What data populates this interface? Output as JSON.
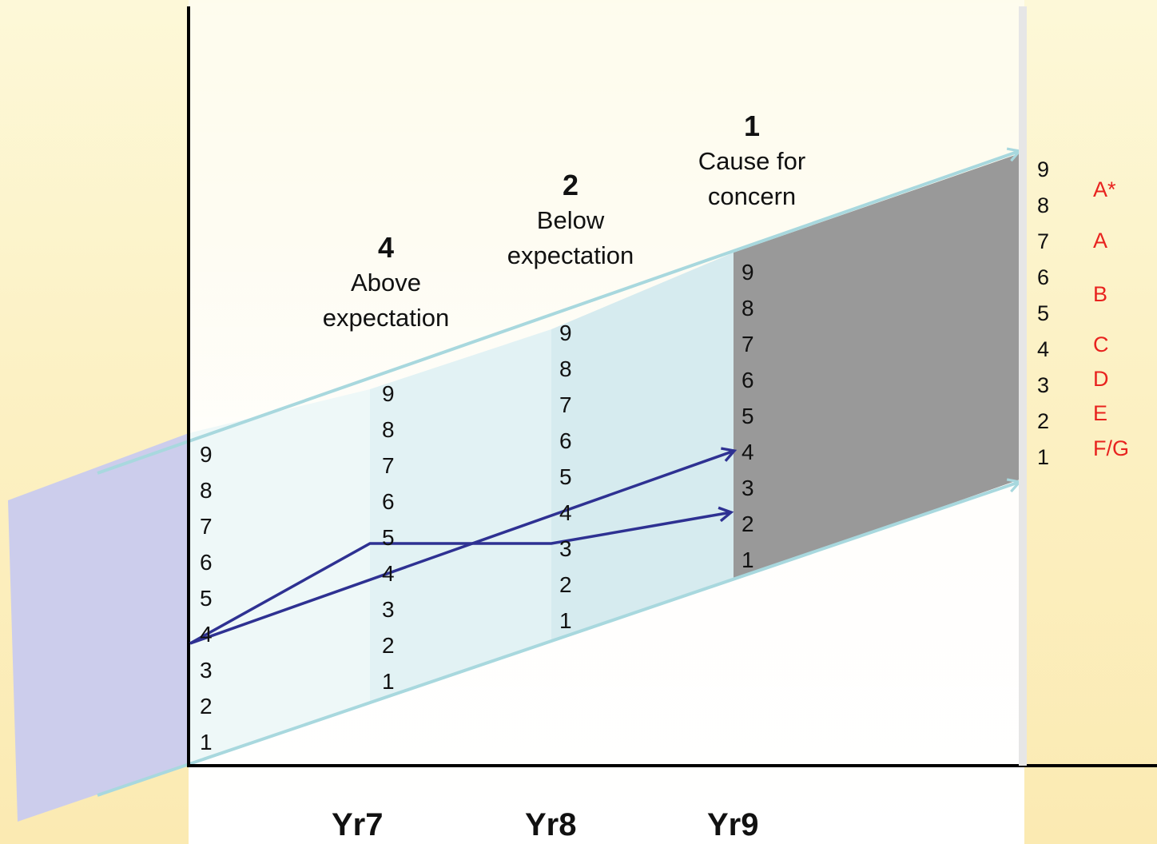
{
  "scale_values": [
    "9",
    "8",
    "7",
    "6",
    "5",
    "4",
    "3",
    "2",
    "1"
  ],
  "columns": {
    "start": {
      "values": [
        "9",
        "8",
        "7",
        "6",
        "5",
        "4",
        "3",
        "2",
        "1"
      ]
    },
    "yr7": {
      "values": [
        "9",
        "8",
        "7",
        "6",
        "5",
        "4",
        "3",
        "2",
        "1"
      ]
    },
    "yr8": {
      "values": [
        "9",
        "8",
        "7",
        "6",
        "5",
        "4",
        "3",
        "2",
        "1"
      ]
    },
    "yr9": {
      "values": [
        "9",
        "8",
        "7",
        "6",
        "5",
        "4",
        "3",
        "2",
        "1"
      ]
    },
    "gcse": {
      "values": [
        "9",
        "8",
        "7",
        "6",
        "5",
        "4",
        "3",
        "2",
        "1"
      ]
    }
  },
  "grades": [
    {
      "label": "A*"
    },
    {
      "label": "A"
    },
    {
      "label": "B"
    },
    {
      "label": "C"
    },
    {
      "label": "D"
    },
    {
      "label": "E"
    },
    {
      "label": "F/G"
    }
  ],
  "headers": [
    {
      "number": "4",
      "text1": "Above",
      "text2": "expectation"
    },
    {
      "number": "2",
      "text1": "Below",
      "text2": "expectation"
    },
    {
      "number": "1",
      "text1": "Cause for",
      "text2": "concern"
    }
  ],
  "x_labels": [
    "Yr7",
    "Yr8",
    "Yr9"
  ],
  "colors": {
    "background": "#fcf1c4",
    "purple_band": "#cccdec",
    "cause_for_concern": "#999999",
    "arrow_outline": "#a8d8de",
    "trajectory": "#2e3192",
    "grade_text": "#e8231f"
  }
}
